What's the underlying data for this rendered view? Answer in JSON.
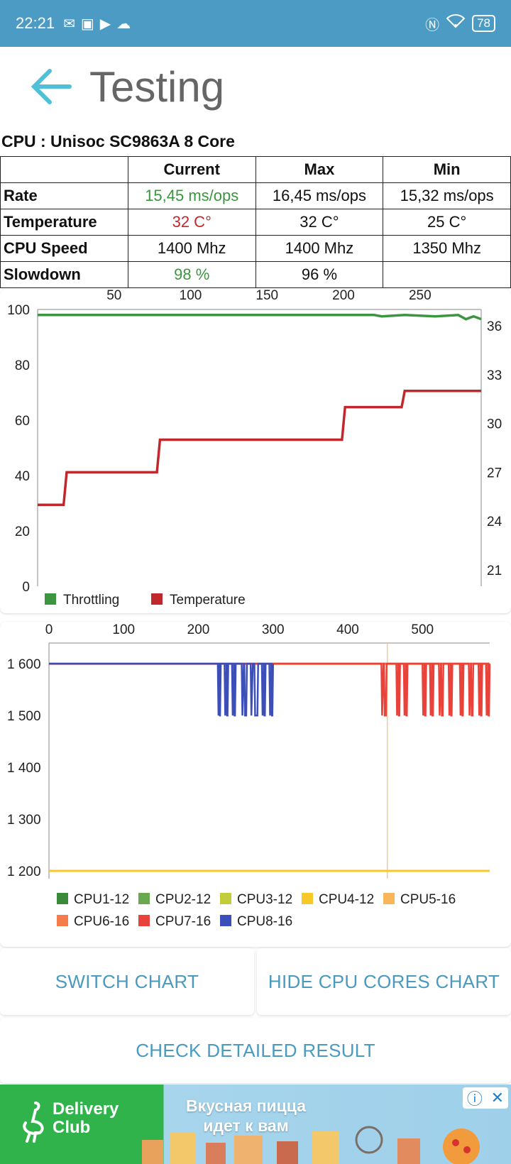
{
  "status_bar": {
    "time": "22:21",
    "notification_icons": [
      "gmail-icon",
      "gallery-icon",
      "play-store-icon",
      "cloud-icon"
    ],
    "battery": "78",
    "right_icons": [
      "nfc-icon",
      "wifi-icon"
    ]
  },
  "header": {
    "title": "Testing",
    "back_icon": "back-arrow-icon"
  },
  "cpu": {
    "title": "CPU : Unisoc SC9863A 8 Core",
    "columns": [
      "Current",
      "Max",
      "Min"
    ],
    "rows": [
      {
        "label": "Rate",
        "current": "15,45 ms/ops",
        "max": "16,45 ms/ops",
        "min": "15,32 ms/ops",
        "current_color": "#3b963f"
      },
      {
        "label": "Temperature",
        "current": "32 C°",
        "max": "32 C°",
        "min": "25 C°",
        "current_color": "#c0282d"
      },
      {
        "label": "CPU Speed",
        "current": "1400 Mhz",
        "max": "1400 Mhz",
        "min": "1350 Mhz",
        "current_color": "#111111"
      },
      {
        "label": "Slowdown",
        "current": "98 %",
        "max": "96 %",
        "min": "",
        "current_color": "#3b963f"
      }
    ]
  },
  "chart_data": [
    {
      "type": "line",
      "x_ticks": [
        50,
        100,
        150,
        200,
        250
      ],
      "xlim": [
        0,
        290
      ],
      "y_left_ticks": [
        0,
        20,
        40,
        60,
        80,
        100
      ],
      "ylim_left": [
        0,
        100
      ],
      "y_right_ticks": [
        21,
        24,
        27,
        30,
        33,
        36
      ],
      "ylim_right": [
        20,
        37
      ],
      "grid": false,
      "legend_position": "bottom-left",
      "series": [
        {
          "name": "Throttling",
          "color": "#3b963f",
          "axis": "left",
          "points": [
            [
              0,
              98
            ],
            [
              220,
              98
            ],
            [
              225,
              97.5
            ],
            [
              240,
              98
            ],
            [
              260,
              97.5
            ],
            [
              275,
              98
            ],
            [
              280,
              96.5
            ],
            [
              285,
              97.5
            ],
            [
              290,
              96.5
            ]
          ]
        },
        {
          "name": "Temperature",
          "color": "#c0282d",
          "axis": "right",
          "points": [
            [
              0,
              25
            ],
            [
              17,
              25
            ],
            [
              19,
              27
            ],
            [
              78,
              27
            ],
            [
              80,
              29
            ],
            [
              199,
              29
            ],
            [
              201,
              31
            ],
            [
              238,
              31
            ],
            [
              240,
              32
            ],
            [
              290,
              32
            ]
          ]
        }
      ]
    },
    {
      "type": "line",
      "x_ticks": [
        0,
        100,
        200,
        300,
        400,
        500
      ],
      "xlim": [
        0,
        590
      ],
      "y_ticks": [
        1200,
        1300,
        1400,
        1500,
        1600
      ],
      "y_tick_labels": [
        "1 200",
        "1 300",
        "1 400",
        "1 500",
        "1 600"
      ],
      "ylim": [
        1185,
        1640
      ],
      "cursor_x": 453,
      "legend_position": "bottom",
      "series": [
        {
          "name": "CPU1-12",
          "color": "#3a8a3c"
        },
        {
          "name": "CPU2-12",
          "color": "#6aa84f"
        },
        {
          "name": "CPU3-12",
          "color": "#c3cc3a"
        },
        {
          "name": "CPU4-12",
          "color": "#f6c928"
        },
        {
          "name": "CPU5-16",
          "color": "#f9b55a"
        },
        {
          "name": "CPU6-16",
          "color": "#f57c4b"
        },
        {
          "name": "CPU7-16",
          "color": "#e8423a"
        },
        {
          "name": "CPU8-16",
          "color": "#3c4fb8"
        }
      ],
      "little_cluster_level": 1200,
      "big_cluster_max": 1600,
      "big_cluster_drop": 1500,
      "cpu8_dips": [
        [
          226,
          230
        ],
        [
          235,
          240
        ],
        [
          245,
          250
        ],
        [
          258,
          265
        ],
        [
          270,
          280
        ],
        [
          285,
          290
        ],
        [
          295,
          300
        ]
      ],
      "cpu7_dips": [
        [
          445,
          452
        ],
        [
          465,
          470
        ],
        [
          475,
          480
        ],
        [
          500,
          505
        ],
        [
          510,
          515
        ],
        [
          522,
          528
        ],
        [
          535,
          540
        ],
        [
          550,
          555
        ],
        [
          562,
          568
        ],
        [
          575,
          580
        ],
        [
          585,
          590
        ]
      ]
    }
  ],
  "buttons": {
    "switch_chart": "SWITCH CHART",
    "hide_cpu_cores": "HIDE CPU CORES CHART",
    "check_detailed": "CHECK DETAILED RESULT"
  },
  "ad": {
    "brand": "Delivery\nClub",
    "text": "Вкусная пицца\nидет к вам",
    "info_icon": "info-icon",
    "close_icon": "close-icon"
  }
}
